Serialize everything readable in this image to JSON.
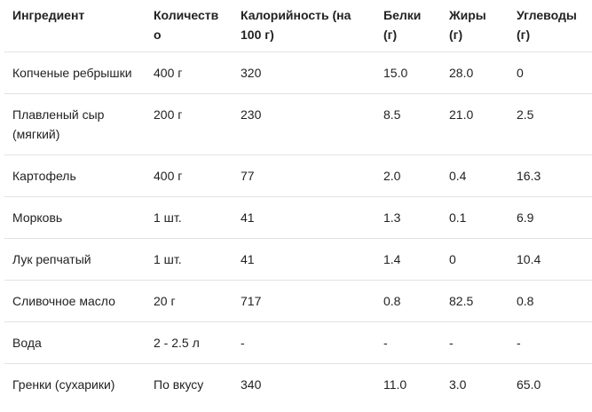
{
  "table": {
    "headers": [
      "Ингредиент",
      "Количество",
      "Калорийность (на 100 г)",
      "Белки (г)",
      "Жиры (г)",
      "Углеводы (г)"
    ],
    "rows": [
      [
        "Копченые ребрышки",
        "400 г",
        "320",
        "15.0",
        "28.0",
        "0"
      ],
      [
        "Плавленый сыр (мягкий)",
        "200 г",
        "230",
        "8.5",
        "21.0",
        "2.5"
      ],
      [
        "Картофель",
        "400 г",
        "77",
        "2.0",
        "0.4",
        "16.3"
      ],
      [
        "Морковь",
        "1 шт.",
        "41",
        "1.3",
        "0.1",
        "6.9"
      ],
      [
        "Лук репчатый",
        "1 шт.",
        "41",
        "1.4",
        "0",
        "10.4"
      ],
      [
        "Сливочное масло",
        "20 г",
        "717",
        "0.8",
        "82.5",
        "0.8"
      ],
      [
        "Вода",
        "2 - 2.5 л",
        "-",
        "-",
        "-",
        "-"
      ],
      [
        "Гренки (сухарики)",
        "По вкусу",
        "340",
        "11.0",
        "3.0",
        "65.0"
      ]
    ]
  }
}
